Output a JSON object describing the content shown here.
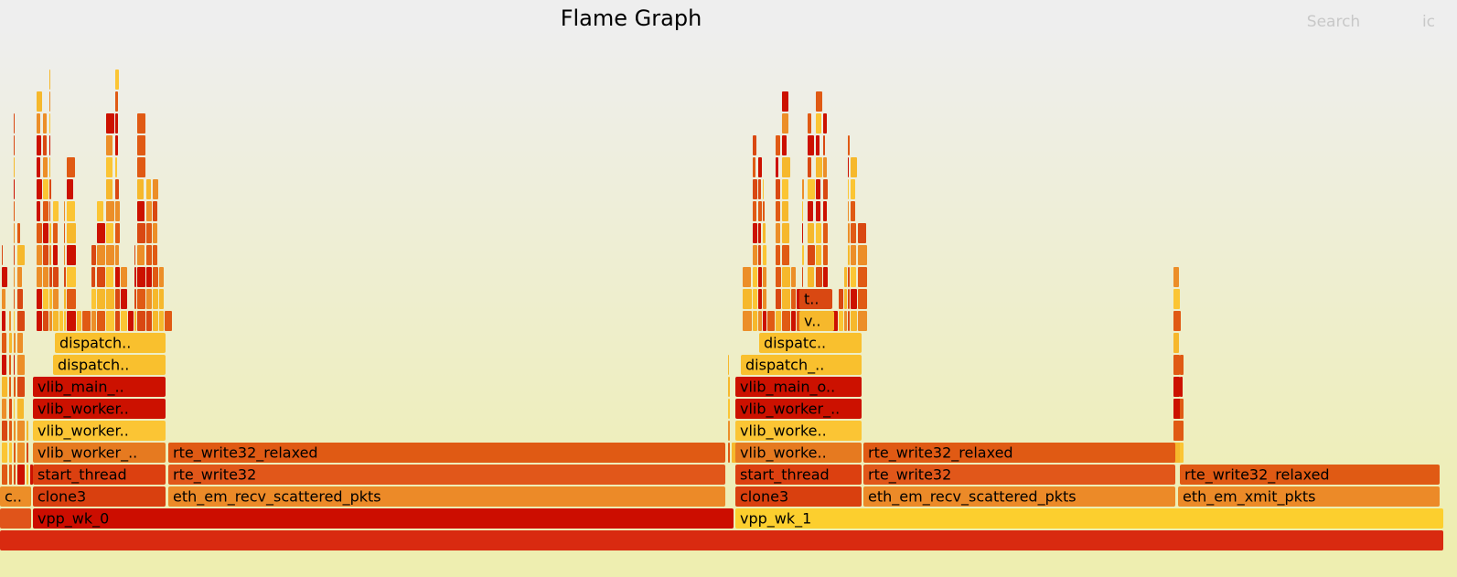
{
  "header": {
    "title": "Flame Graph",
    "search": "Search",
    "ic": "ic"
  },
  "frames": [
    {
      "label": "vpp_wk_0"
    },
    {
      "label": "vpp_wk_1"
    },
    {
      "label": "c.."
    },
    {
      "label": "clone3"
    },
    {
      "label": "eth_em_recv_scattered_pkts"
    },
    {
      "label": "clone3"
    },
    {
      "label": "eth_em_recv_scattered_pkts"
    },
    {
      "label": "eth_em_xmit_pkts"
    },
    {
      "label": "start_thread"
    },
    {
      "label": "rte_write32"
    },
    {
      "label": "start_thread"
    },
    {
      "label": "rte_write32"
    },
    {
      "label": "rte_write32_relaxed"
    },
    {
      "label": "vlib_worker_.."
    },
    {
      "label": "rte_write32_relaxed"
    },
    {
      "label": "vlib_worke.."
    },
    {
      "label": "rte_write32_relaxed"
    },
    {
      "label": "vlib_worker.."
    },
    {
      "label": "vlib_worke.."
    },
    {
      "label": "vlib_worker.."
    },
    {
      "label": "vlib_worker_.."
    },
    {
      "label": "vlib_main_.."
    },
    {
      "label": "vlib_main_o.."
    },
    {
      "label": "dispatch.."
    },
    {
      "label": "dispatch_.."
    },
    {
      "label": "dispatch.."
    },
    {
      "label": "dispatc.."
    },
    {
      "label": "v.."
    },
    {
      "label": "t.."
    }
  ]
}
